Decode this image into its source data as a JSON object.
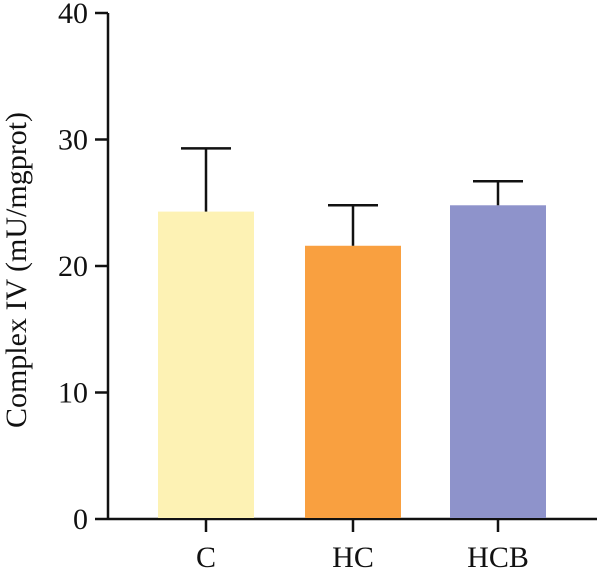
{
  "chart_data": {
    "type": "bar",
    "categories": [
      "C",
      "HC",
      "HCB"
    ],
    "values": [
      24.3,
      21.6,
      24.8
    ],
    "error": [
      5.0,
      3.2,
      1.9
    ],
    "ylabel": "Complex IV (mU/mgprot)",
    "xlabel": "",
    "ylim": [
      0,
      40
    ],
    "yticks": [
      0,
      10,
      20,
      30,
      40
    ],
    "grid": false,
    "legend": "none",
    "colors": [
      "#fdf2b4",
      "#f9a040",
      "#8e93cb"
    ]
  }
}
